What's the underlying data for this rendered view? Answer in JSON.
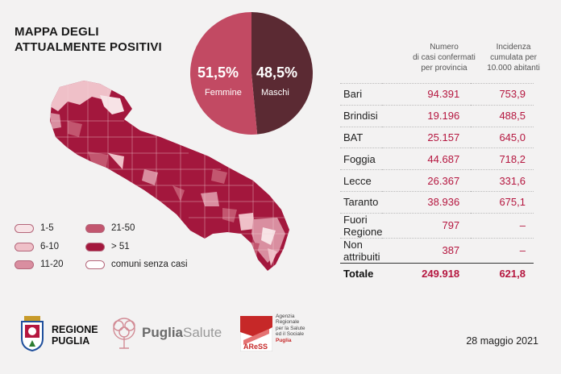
{
  "title": {
    "line1": "MAPPA DEGLI",
    "line2": "ATTUALMENTE POSITIVI"
  },
  "gender": {
    "female_pct": "51,5%",
    "female_label": "Femmine",
    "male_pct": "48,5%",
    "male_label": "Maschi",
    "female_fraction": 0.515,
    "female_color": "#c24a63",
    "male_color": "#5b2a33"
  },
  "table": {
    "col1_header": [
      "Numero",
      "di casi confermati",
      "per provincia"
    ],
    "col2_header": [
      "Incidenza",
      "cumulata per",
      "10.000 abitanti"
    ],
    "rows": [
      {
        "name": "Bari",
        "cases": "94.391",
        "incidence": "753,9"
      },
      {
        "name": "Brindisi",
        "cases": "19.196",
        "incidence": "488,5"
      },
      {
        "name": "BAT",
        "cases": "25.157",
        "incidence": "645,0"
      },
      {
        "name": "Foggia",
        "cases": "44.687",
        "incidence": "718,2"
      },
      {
        "name": "Lecce",
        "cases": "26.367",
        "incidence": "331,6"
      },
      {
        "name": "Taranto",
        "cases": "38.936",
        "incidence": "675,1"
      },
      {
        "name": "Fuori Regione",
        "cases": "797",
        "incidence": "–"
      },
      {
        "name": "Non attribuiti",
        "cases": "387",
        "incidence": "–"
      }
    ],
    "total": {
      "name": "Totale",
      "cases": "249.918",
      "incidence": "621,8"
    }
  },
  "legend": [
    {
      "label": "1-5",
      "color": "#f7e3e6"
    },
    {
      "label": "6-10",
      "color": "#efc0c8"
    },
    {
      "label": "11-20",
      "color": "#d98ea0"
    },
    {
      "label": "21-50",
      "color": "#c2566f"
    },
    {
      "label": "> 51",
      "color": "#a3173d"
    },
    {
      "label": "comuni senza casi",
      "color": "#ffffff"
    }
  ],
  "footer": {
    "regione_line1": "REGIONE",
    "regione_line2": "PUGLIA",
    "puglia_word": "Puglia",
    "salute_word": "Salute",
    "aress_logo": "AReSS",
    "aress_lines": [
      "Agenzia",
      "Regionale",
      "per la Salute",
      "ed il Sociale",
      "Puglia"
    ],
    "date": "28 maggio 2021"
  }
}
